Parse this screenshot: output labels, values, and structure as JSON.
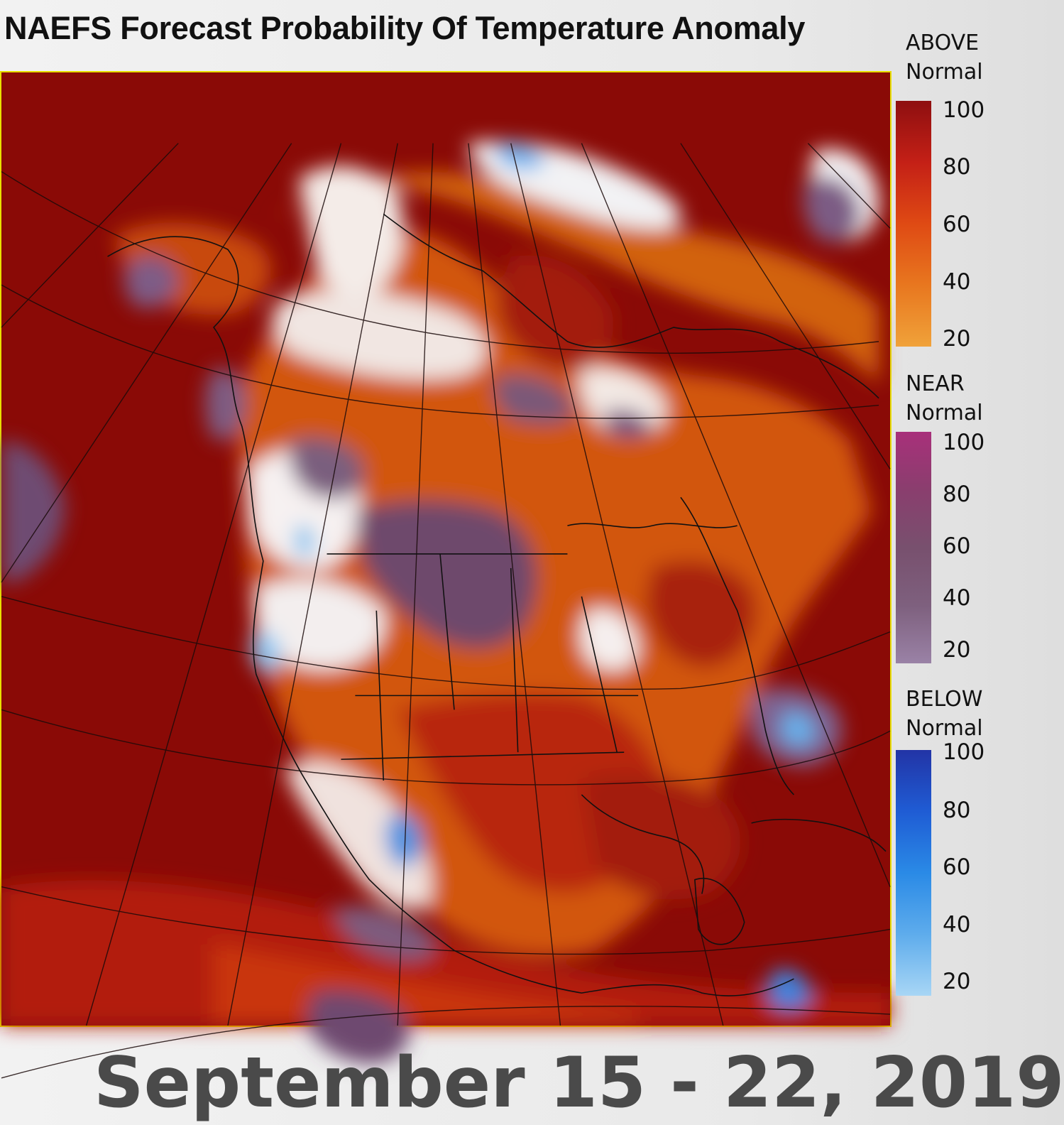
{
  "title": "NAEFS Forecast Probability Of Temperature Anomaly",
  "date_range": "September 15 - 22, 2019",
  "legend": {
    "above": {
      "label_line1": "ABOVE",
      "label_line2": "Normal",
      "ticks": [
        "100",
        "80",
        "60",
        "40",
        "20"
      ],
      "colors": [
        "#8e0f10",
        "#c42016",
        "#df4a14",
        "#e8771f",
        "#f0a23a"
      ]
    },
    "near": {
      "label_line1": "NEAR",
      "label_line2": "Normal",
      "ticks": [
        "100",
        "80",
        "60",
        "40",
        "20"
      ],
      "colors": [
        "#a8307a",
        "#8a3e6e",
        "#78506e",
        "#7e607e",
        "#9a82a6"
      ]
    },
    "below": {
      "label_line1": "BELOW",
      "label_line2": "Normal",
      "ticks": [
        "100",
        "80",
        "60",
        "40",
        "20"
      ],
      "colors": [
        "#2234a6",
        "#1f5cd4",
        "#2a8ae6",
        "#5eacec",
        "#a8d6f5"
      ]
    }
  }
}
